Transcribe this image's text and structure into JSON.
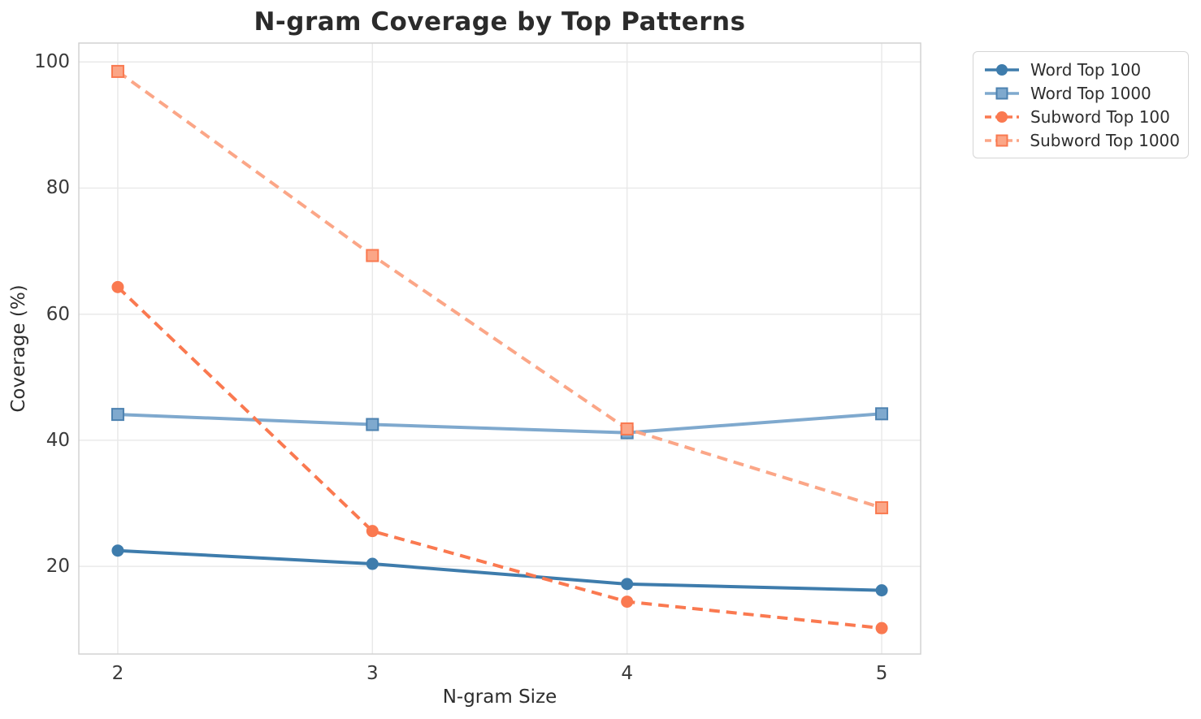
{
  "chart_data": {
    "type": "line",
    "title": "N-gram Coverage by Top Patterns",
    "xlabel": "N-gram Size",
    "ylabel": "Coverage (%)",
    "x": [
      2,
      3,
      4,
      5
    ],
    "x_ticks": [
      2,
      3,
      4,
      5
    ],
    "y_ticks": [
      20,
      40,
      60,
      80,
      100
    ],
    "xlim": [
      1.847,
      5.153
    ],
    "ylim": [
      6.1,
      103.0
    ],
    "grid": true,
    "legend_position": "outside upper right",
    "series": [
      {
        "name": "Word Top 100",
        "color": "#3e7cac",
        "line_style": "solid",
        "marker": "circle",
        "values": [
          22.5,
          20.4,
          17.2,
          16.2
        ]
      },
      {
        "name": "Word Top 1000",
        "color": "#7fa9ce",
        "marker_edge": "#4d82b0",
        "line_style": "solid",
        "marker": "square",
        "values": [
          44.1,
          42.5,
          41.2,
          44.2
        ]
      },
      {
        "name": "Subword Top 100",
        "color": "#fa7950",
        "line_style": "dashed",
        "marker": "circle",
        "values": [
          64.3,
          25.6,
          14.4,
          10.2
        ]
      },
      {
        "name": "Subword Top 1000",
        "color": "#fba687",
        "marker_edge": "#f97950",
        "line_style": "dashed",
        "marker": "square",
        "values": [
          98.5,
          69.3,
          41.8,
          29.3
        ]
      }
    ]
  }
}
